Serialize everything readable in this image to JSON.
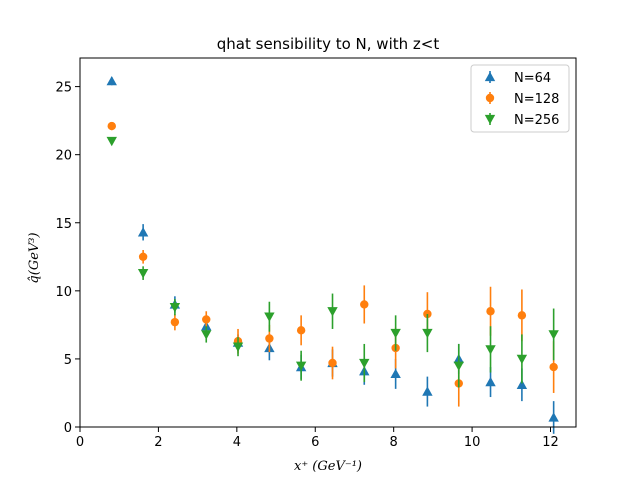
{
  "chart_data": {
    "type": "scatter",
    "title": "qhat sensibility to N, with z<t",
    "xlabel": "x⁺ (GeV⁻¹)",
    "ylabel": "q̂(GeV³)",
    "xlim": [
      0,
      12.65
    ],
    "ylim": [
      0,
      27.1
    ],
    "xticks": [
      0,
      2,
      4,
      6,
      8,
      10,
      12
    ],
    "yticks": [
      0,
      5,
      10,
      15,
      20,
      25
    ],
    "grid": false,
    "legend_position": "top-right",
    "series": [
      {
        "name": "N=64",
        "color": "#1f77b4",
        "marker": "triangle-up",
        "x": [
          0.81,
          1.61,
          2.42,
          3.22,
          4.03,
          4.83,
          5.64,
          6.44,
          7.25,
          8.05,
          8.86,
          9.66,
          10.47,
          11.27,
          12.08
        ],
        "y": [
          25.4,
          14.3,
          9.0,
          7.4,
          6.2,
          5.8,
          4.4,
          4.7,
          4.1,
          3.9,
          2.6,
          5.0,
          3.3,
          3.1,
          0.7
        ],
        "err": [
          0.3,
          0.6,
          0.6,
          0.6,
          0.6,
          0.9,
          0.9,
          1.0,
          1.0,
          1.1,
          1.1,
          1.1,
          1.1,
          1.2,
          1.2
        ]
      },
      {
        "name": "N=128",
        "color": "#ff7f0e",
        "marker": "circle",
        "x": [
          0.81,
          1.61,
          2.42,
          3.22,
          4.03,
          4.83,
          5.64,
          6.44,
          7.25,
          8.05,
          8.86,
          9.66,
          10.47,
          11.27,
          12.08
        ],
        "y": [
          22.1,
          12.5,
          7.7,
          7.9,
          6.3,
          6.5,
          7.1,
          4.7,
          9.0,
          5.8,
          8.3,
          3.2,
          8.5,
          8.2,
          4.4
        ],
        "err": [
          0.3,
          0.5,
          0.6,
          0.6,
          0.9,
          1.0,
          1.1,
          1.2,
          1.4,
          1.5,
          1.6,
          1.7,
          1.8,
          1.9,
          1.9
        ]
      },
      {
        "name": "N=256",
        "color": "#2ca02c",
        "marker": "triangle-down",
        "x": [
          0.81,
          1.61,
          2.42,
          3.22,
          4.03,
          4.83,
          5.64,
          6.44,
          7.25,
          8.05,
          8.86,
          9.66,
          10.47,
          11.27,
          12.08
        ],
        "y": [
          21.0,
          11.3,
          8.8,
          6.8,
          5.9,
          8.1,
          4.5,
          8.5,
          4.7,
          6.9,
          6.9,
          4.5,
          5.7,
          5.0,
          6.8
        ],
        "err": [
          0.2,
          0.5,
          0.6,
          0.6,
          0.7,
          1.1,
          1.1,
          1.3,
          1.4,
          1.3,
          1.4,
          1.6,
          1.7,
          1.8,
          1.9
        ]
      }
    ]
  }
}
